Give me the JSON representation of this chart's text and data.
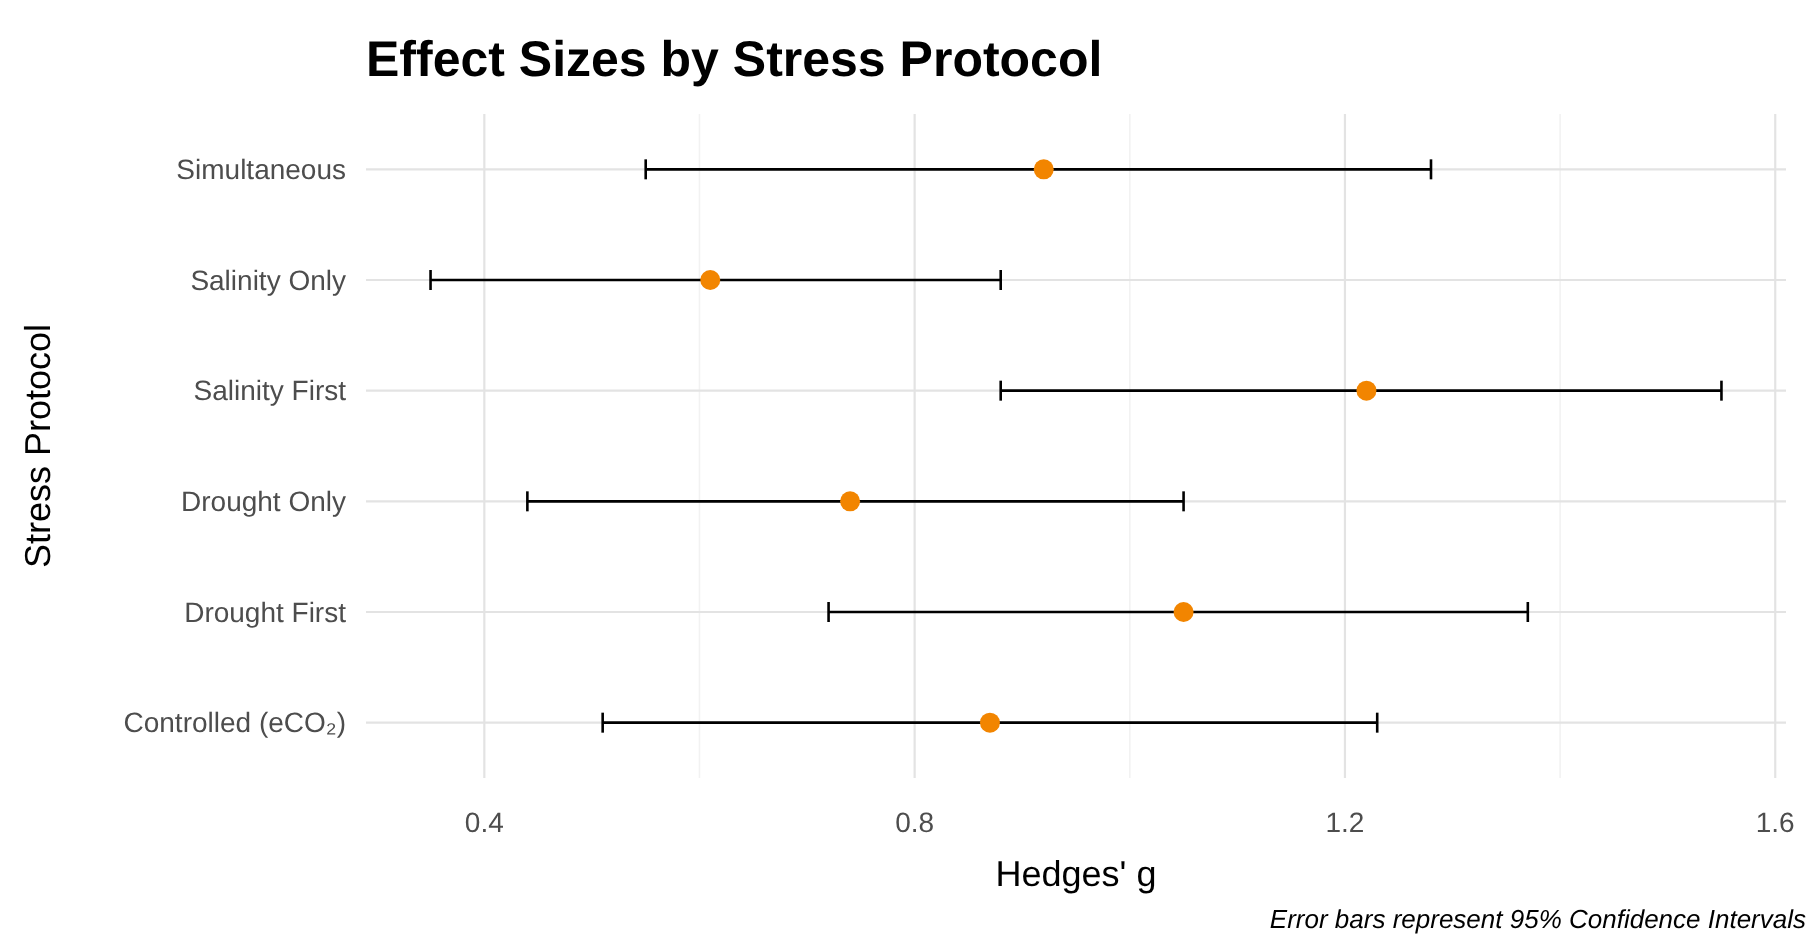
{
  "chart_data": {
    "type": "scatter",
    "title": "Effect Sizes by Stress Protocol",
    "xlabel": "Hedges' g",
    "ylabel": "Stress Protocol",
    "orientation": "horizontal",
    "categories": [
      "Simultaneous",
      "Salinity Only",
      "Salinity First",
      "Drought Only",
      "Drought First",
      "Controlled (eCO₂)"
    ],
    "values": [
      0.92,
      0.61,
      1.22,
      0.74,
      1.05,
      0.87
    ],
    "errors": [
      [
        0.55,
        1.28
      ],
      [
        0.35,
        0.88
      ],
      [
        0.88,
        1.55
      ],
      [
        0.44,
        1.05
      ],
      [
        0.72,
        1.37
      ],
      [
        0.51,
        1.23
      ]
    ],
    "color": "#f28500",
    "xlim": [
      0.29,
      1.61
    ],
    "xticks": [
      0.4,
      {
        "value": 0.6,
        "label": null
      },
      0.8,
      {
        "value": 1.0,
        "label": null
      },
      1.2,
      {
        "value": 1.4,
        "label": null
      },
      1.6
    ],
    "grid": true,
    "marker": "circle",
    "annotations": [
      "Error bars represent 95% Confidence Intervals"
    ]
  }
}
